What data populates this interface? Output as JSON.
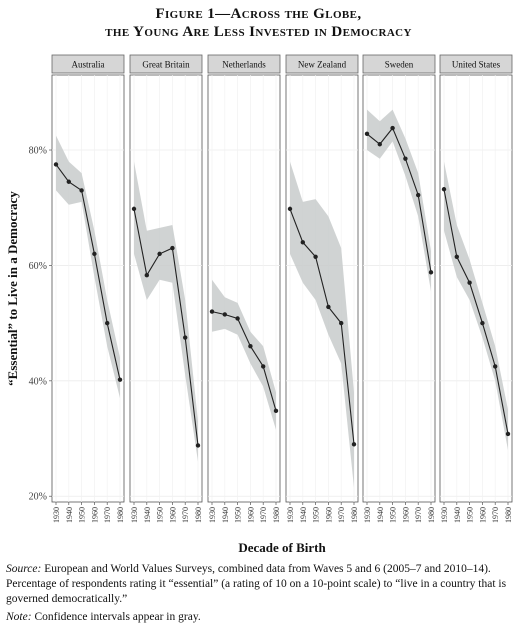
{
  "figure": {
    "title_line1": "Figure 1—Across the Globe,",
    "title_line2": "the Young Are Less Invested in Democracy"
  },
  "caption": {
    "source_label": "Source:",
    "source_text": " European and World Values Surveys, combined data from Waves 5 and 6 (2005–7 and 2010–14). Percentage of respondents rating it “essential” (a rating of 10 on a 10-point scale) to “live in a country that is governed democratically.”",
    "note_label": "Note:",
    "note_text": " Confidence intervals appear in gray."
  },
  "chart_data": {
    "type": "line",
    "xlabel": "Decade of Birth",
    "ylabel": "“Essential” to Live in a Democracy",
    "ylim": [
      19,
      93
    ],
    "y_ticks": [
      20,
      40,
      60,
      80
    ],
    "y_tick_labels": [
      "20%",
      "40%",
      "60%",
      "80%"
    ],
    "x": [
      "1930",
      "1940",
      "1950",
      "1960",
      "1970",
      "1980"
    ],
    "grid": true,
    "band_color": "#c8cbcb",
    "line_color": "#222222",
    "strip_color": "#d6d6d6",
    "series": [
      {
        "name": "Australia",
        "values": [
          77.5,
          74.5,
          73,
          62,
          50,
          40.2
        ],
        "lower": [
          73,
          70.5,
          71,
          58,
          46,
          37
        ],
        "upper": [
          82.5,
          78,
          76,
          66,
          54,
          44
        ]
      },
      {
        "name": "Great Britain",
        "values": [
          69.8,
          58.3,
          62,
          63,
          47.5,
          28.8
        ],
        "lower": [
          62,
          54,
          57.5,
          57,
          41,
          26
        ],
        "upper": [
          78,
          66,
          66.5,
          67,
          54,
          33
        ]
      },
      {
        "name": "Netherlands",
        "values": [
          52,
          51.5,
          50.8,
          46,
          42.5,
          34.8
        ],
        "lower": [
          48.5,
          49,
          48,
          43,
          39,
          31.5
        ],
        "upper": [
          57.5,
          54.5,
          53.5,
          48.5,
          46,
          38
        ]
      },
      {
        "name": "New Zealand",
        "values": [
          69.8,
          64,
          61.5,
          52.8,
          50,
          29
        ],
        "lower": [
          62,
          57,
          54,
          48,
          43,
          21.5
        ],
        "upper": [
          78,
          71,
          71.5,
          68.5,
          63,
          38
        ]
      },
      {
        "name": "Sweden",
        "values": [
          82.8,
          81,
          83.8,
          78.5,
          72.2,
          58.8
        ],
        "lower": [
          80,
          78.5,
          81.5,
          75.5,
          68.5,
          55.5
        ],
        "upper": [
          87,
          85,
          87,
          82,
          76,
          62.5
        ]
      },
      {
        "name": "United States",
        "values": [
          73.2,
          61.5,
          57,
          50,
          42.5,
          30.8
        ],
        "lower": [
          66,
          58,
          54,
          47.5,
          40,
          28
        ],
        "upper": [
          78,
          67,
          61,
          53.5,
          46,
          35
        ]
      }
    ]
  }
}
